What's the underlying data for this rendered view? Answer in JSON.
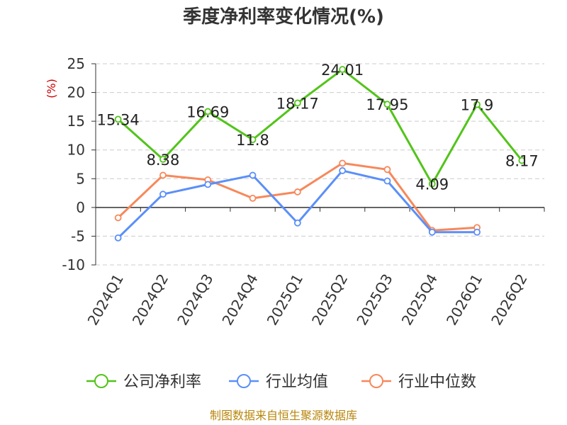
{
  "chart_data": {
    "type": "line",
    "title": "季度净利率变化情况(%)",
    "unit_label": "(%)",
    "categories": [
      "2024Q1",
      "2024Q2",
      "2024Q3",
      "2024Q4",
      "2025Q1",
      "2025Q2",
      "2025Q3",
      "2025Q4",
      "2026Q1",
      "2026Q2"
    ],
    "ylim": [
      -10,
      25
    ],
    "yticks": [
      25,
      20,
      15,
      10,
      5,
      0,
      -5,
      -10
    ],
    "grid": true,
    "legend_position": "bottom",
    "series": [
      {
        "name": "公司净利率",
        "color": "#52c41a",
        "values": [
          15.34,
          8.38,
          16.69,
          11.8,
          18.17,
          24.01,
          17.95,
          4.09,
          17.9,
          8.17
        ],
        "labels": [
          "15.34",
          "8.38",
          "16.69",
          "11.8",
          "18.17",
          "24.01",
          "17.95",
          "4.09",
          "17.9",
          "8.17"
        ]
      },
      {
        "name": "行业均值",
        "color": "#5b8ff9",
        "values": [
          -5.3,
          2.3,
          4.0,
          5.6,
          -2.7,
          6.4,
          4.6,
          -4.3,
          -4.3,
          null
        ]
      },
      {
        "name": "行业中位数",
        "color": "#f7885a",
        "values": [
          -1.8,
          5.6,
          4.8,
          1.6,
          2.7,
          7.7,
          6.6,
          -4.0,
          -3.5,
          null
        ]
      }
    ],
    "source": "制图数据来自恒生聚源数据库"
  }
}
